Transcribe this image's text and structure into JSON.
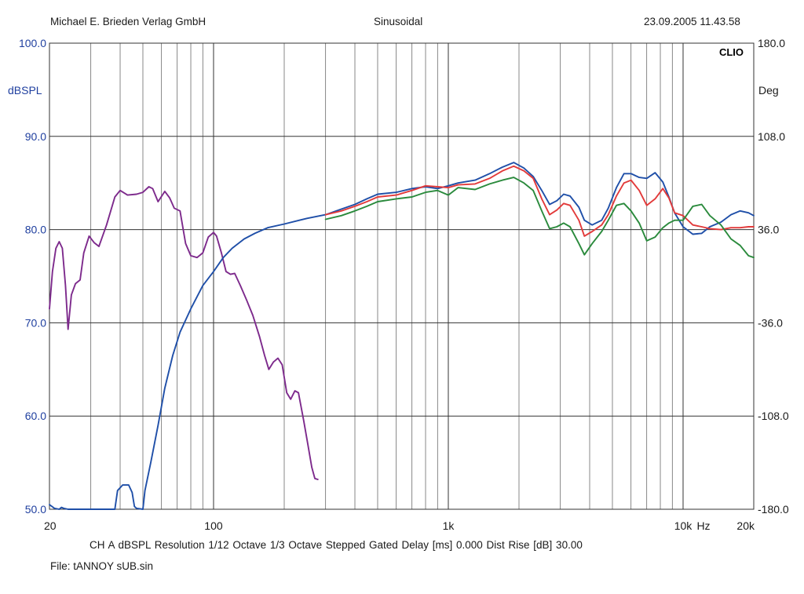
{
  "header": {
    "publisher": "Michael E. Brieden Verlag GmbH",
    "mode": "Sinusoidal",
    "datetime": "23.09.2005 11.43.58"
  },
  "footer": {
    "info": "CH A   dBSPL   Resolution 1/12 Octave   1/3 Octave   Stepped   Gated   Delay [ms] 0.000   Dist Rise [dB] 30.00",
    "file": "File: tANNOY sUB.sin"
  },
  "chart_data": {
    "type": "line",
    "brand": "CLIO",
    "x_scale": "log",
    "xlim": [
      20,
      20000
    ],
    "ylim": [
      50,
      100
    ],
    "y2lim": [
      -180,
      180
    ],
    "ylabel": "dBSPL",
    "y2label": "Deg",
    "xunit": "Hz",
    "grid": true,
    "x_ticks": [
      {
        "value": 20,
        "label": "20"
      },
      {
        "value": 100,
        "label": "100"
      },
      {
        "value": 1000,
        "label": "1k"
      },
      {
        "value": 10000,
        "label": "10k"
      },
      {
        "value": 20000,
        "label": "20k"
      }
    ],
    "y_ticks": [
      "50.0",
      "60.0",
      "70.0",
      "80.0",
      "90.0",
      "100.0"
    ],
    "y2_ticks": [
      "-180.0",
      "-108.0",
      "-36.0",
      "36.0",
      "108.0",
      "180.0"
    ],
    "series": [
      {
        "color": "#7d2a8c",
        "points": [
          [
            20,
            71.5
          ],
          [
            20.6,
            75.5
          ],
          [
            21.3,
            78
          ],
          [
            22,
            78.7
          ],
          [
            22.7,
            78
          ],
          [
            23.4,
            74
          ],
          [
            24,
            69.3
          ],
          [
            24.8,
            73
          ],
          [
            25.8,
            74.2
          ],
          [
            27,
            74.6
          ],
          [
            28,
            77.5
          ],
          [
            29.5,
            79.3
          ],
          [
            31,
            78.6
          ],
          [
            32.5,
            78.2
          ],
          [
            35,
            80.5
          ],
          [
            38,
            83.5
          ],
          [
            40,
            84.2
          ],
          [
            43,
            83.7
          ],
          [
            47,
            83.8
          ],
          [
            50,
            84
          ],
          [
            53,
            84.6
          ],
          [
            55,
            84.4
          ],
          [
            58,
            83
          ],
          [
            62,
            84.1
          ],
          [
            65,
            83.4
          ],
          [
            68,
            82.3
          ],
          [
            72,
            82
          ],
          [
            76,
            78.5
          ],
          [
            80,
            77.2
          ],
          [
            85,
            77
          ],
          [
            90,
            77.5
          ],
          [
            95,
            79.2
          ],
          [
            100,
            79.7
          ],
          [
            103,
            79.3
          ],
          [
            108,
            77.5
          ],
          [
            113,
            75.5
          ],
          [
            118,
            75.2
          ],
          [
            123,
            75.3
          ],
          [
            130,
            74
          ],
          [
            138,
            72.5
          ],
          [
            147,
            70.8
          ],
          [
            157,
            68.5
          ],
          [
            165,
            66.5
          ],
          [
            172,
            65
          ],
          [
            180,
            65.8
          ],
          [
            188,
            66.2
          ],
          [
            196,
            65.5
          ],
          [
            205,
            62.5
          ],
          [
            213,
            61.8
          ],
          [
            222,
            62.7
          ],
          [
            230,
            62.5
          ],
          [
            242,
            59.5
          ],
          [
            252,
            57
          ],
          [
            262,
            54.5
          ],
          [
            270,
            53.3
          ],
          [
            278,
            53.2
          ]
        ]
      },
      {
        "color": "#1f4fa8",
        "points": [
          [
            20,
            50.5
          ],
          [
            21,
            50.1
          ],
          [
            22,
            50
          ],
          [
            22.5,
            50.2
          ],
          [
            23,
            50.1
          ],
          [
            24,
            50
          ],
          [
            38,
            50
          ],
          [
            39,
            52
          ],
          [
            41,
            52.6
          ],
          [
            43.5,
            52.6
          ],
          [
            45,
            51.8
          ],
          [
            46,
            50.3
          ],
          [
            47,
            50.1
          ],
          [
            50,
            50
          ],
          [
            51,
            52
          ],
          [
            54,
            55
          ],
          [
            58,
            59
          ],
          [
            62,
            63
          ],
          [
            67,
            66.5
          ],
          [
            72,
            69
          ],
          [
            80,
            71.5
          ],
          [
            90,
            74
          ],
          [
            100,
            75.5
          ],
          [
            110,
            77
          ],
          [
            120,
            78
          ],
          [
            135,
            79
          ],
          [
            150,
            79.6
          ],
          [
            170,
            80.2
          ],
          [
            200,
            80.6
          ],
          [
            250,
            81.2
          ],
          [
            300,
            81.6
          ],
          [
            350,
            82.2
          ],
          [
            400,
            82.7
          ],
          [
            450,
            83.3
          ],
          [
            500,
            83.8
          ],
          [
            600,
            84
          ],
          [
            700,
            84.4
          ],
          [
            800,
            84.6
          ],
          [
            900,
            84.4
          ],
          [
            1000,
            84.7
          ],
          [
            1100,
            85
          ],
          [
            1300,
            85.3
          ],
          [
            1500,
            86
          ],
          [
            1700,
            86.7
          ],
          [
            1900,
            87.2
          ],
          [
            2100,
            86.6
          ],
          [
            2300,
            85.7
          ],
          [
            2500,
            84.2
          ],
          [
            2700,
            82.7
          ],
          [
            2900,
            83.1
          ],
          [
            3100,
            83.8
          ],
          [
            3300,
            83.6
          ],
          [
            3600,
            82.4
          ],
          [
            3800,
            81
          ],
          [
            4100,
            80.5
          ],
          [
            4500,
            81
          ],
          [
            4800,
            82.3
          ],
          [
            5200,
            84.5
          ],
          [
            5600,
            86
          ],
          [
            6000,
            86
          ],
          [
            6500,
            85.6
          ],
          [
            7000,
            85.5
          ],
          [
            7600,
            86.1
          ],
          [
            8200,
            85.1
          ],
          [
            8700,
            83.5
          ],
          [
            9200,
            81.8
          ],
          [
            10000,
            80.3
          ],
          [
            11000,
            79.5
          ],
          [
            12000,
            79.6
          ],
          [
            13000,
            80.3
          ],
          [
            14500,
            80.8
          ],
          [
            16000,
            81.6
          ],
          [
            17500,
            82
          ],
          [
            19000,
            81.8
          ],
          [
            20000,
            81.5
          ]
        ]
      },
      {
        "color": "#e23a3a",
        "points": [
          [
            300,
            81.6
          ],
          [
            350,
            82
          ],
          [
            400,
            82.5
          ],
          [
            450,
            83
          ],
          [
            500,
            83.5
          ],
          [
            600,
            83.7
          ],
          [
            700,
            84.2
          ],
          [
            800,
            84.7
          ],
          [
            900,
            84.6
          ],
          [
            1000,
            84.5
          ],
          [
            1100,
            84.8
          ],
          [
            1300,
            84.9
          ],
          [
            1500,
            85.5
          ],
          [
            1700,
            86.3
          ],
          [
            1900,
            86.8
          ],
          [
            2100,
            86.3
          ],
          [
            2300,
            85.5
          ],
          [
            2500,
            83.3
          ],
          [
            2700,
            81.6
          ],
          [
            2900,
            82.1
          ],
          [
            3100,
            82.8
          ],
          [
            3300,
            82.6
          ],
          [
            3600,
            81
          ],
          [
            3800,
            79.3
          ],
          [
            4100,
            79.8
          ],
          [
            4500,
            80.5
          ],
          [
            4800,
            81.6
          ],
          [
            5200,
            83.6
          ],
          [
            5600,
            85
          ],
          [
            6000,
            85.3
          ],
          [
            6500,
            84.2
          ],
          [
            7000,
            82.6
          ],
          [
            7600,
            83.3
          ],
          [
            8200,
            84.4
          ],
          [
            8700,
            83.4
          ],
          [
            9200,
            81.8
          ],
          [
            10000,
            81.5
          ],
          [
            11000,
            80.5
          ],
          [
            12000,
            80.3
          ],
          [
            13000,
            80.1
          ],
          [
            14500,
            80
          ],
          [
            16000,
            80.2
          ],
          [
            17500,
            80.2
          ],
          [
            19000,
            80.3
          ],
          [
            20000,
            80.3
          ]
        ]
      },
      {
        "color": "#2a8a3c",
        "points": [
          [
            300,
            81.1
          ],
          [
            350,
            81.5
          ],
          [
            400,
            82
          ],
          [
            450,
            82.5
          ],
          [
            500,
            83
          ],
          [
            600,
            83.3
          ],
          [
            700,
            83.5
          ],
          [
            800,
            84
          ],
          [
            900,
            84.2
          ],
          [
            1000,
            83.7
          ],
          [
            1100,
            84.5
          ],
          [
            1300,
            84.3
          ],
          [
            1500,
            84.9
          ],
          [
            1700,
            85.3
          ],
          [
            1900,
            85.6
          ],
          [
            2100,
            85
          ],
          [
            2300,
            84.2
          ],
          [
            2500,
            82
          ],
          [
            2700,
            80.1
          ],
          [
            2900,
            80.3
          ],
          [
            3100,
            80.7
          ],
          [
            3300,
            80.3
          ],
          [
            3600,
            78.5
          ],
          [
            3800,
            77.3
          ],
          [
            4100,
            78.5
          ],
          [
            4500,
            79.8
          ],
          [
            4800,
            81
          ],
          [
            5200,
            82.6
          ],
          [
            5600,
            82.8
          ],
          [
            6000,
            82
          ],
          [
            6500,
            80.7
          ],
          [
            7000,
            78.8
          ],
          [
            7600,
            79.2
          ],
          [
            8200,
            80.2
          ],
          [
            8700,
            80.7
          ],
          [
            9200,
            81
          ],
          [
            10000,
            81
          ],
          [
            11000,
            82.5
          ],
          [
            12000,
            82.7
          ],
          [
            13000,
            81.5
          ],
          [
            14500,
            80.5
          ],
          [
            16000,
            79
          ],
          [
            17500,
            78.3
          ],
          [
            19000,
            77.2
          ],
          [
            20000,
            77
          ]
        ]
      }
    ]
  }
}
